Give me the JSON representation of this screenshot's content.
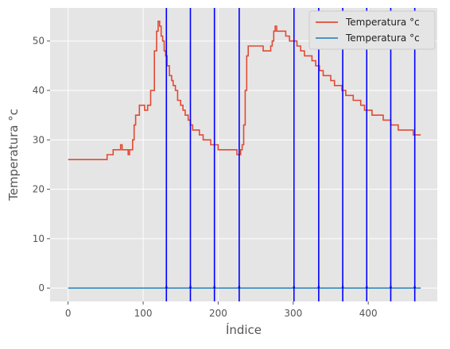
{
  "chart_data": {
    "type": "line",
    "title": "",
    "xlabel": "Índice",
    "ylabel": "Temperatura °c",
    "xlim": [
      -24,
      492
    ],
    "ylim": [
      -2.7,
      56.7
    ],
    "xticks": [
      0,
      100,
      200,
      300,
      400
    ],
    "yticks": [
      0,
      10,
      20,
      30,
      40,
      50
    ],
    "grid": true,
    "legend": "top-right",
    "series": [
      {
        "name": "Temperatura °c",
        "color": "#E24A33",
        "x": [
          0,
          50,
          52,
          60,
          68,
          70,
          72,
          75,
          78,
          80,
          82,
          84,
          86,
          88,
          90,
          95,
          100,
          102,
          106,
          110,
          115,
          118,
          120,
          122,
          124,
          126,
          128,
          130,
          132,
          135,
          138,
          140,
          143,
          146,
          150,
          153,
          156,
          160,
          163,
          166,
          170,
          175,
          180,
          185,
          190,
          195,
          200,
          210,
          220,
          225,
          228,
          230,
          232,
          234,
          236,
          238,
          240,
          245,
          250,
          255,
          260,
          265,
          270,
          272,
          274,
          276,
          278,
          280,
          285,
          290,
          295,
          300,
          305,
          310,
          315,
          320,
          325,
          330,
          335,
          340,
          345,
          350,
          355,
          360,
          365,
          370,
          375,
          380,
          385,
          390,
          395,
          400,
          405,
          410,
          420,
          430,
          440,
          450,
          460,
          470
        ],
        "y": [
          26,
          26,
          27,
          28,
          28,
          29,
          28,
          28,
          28,
          27,
          28,
          28,
          30,
          33,
          35,
          37,
          37,
          36,
          37,
          40,
          48,
          52,
          54,
          53,
          51,
          50,
          48,
          47,
          45,
          43,
          42,
          41,
          40,
          38,
          37,
          36,
          35,
          34,
          33,
          32,
          32,
          31,
          30,
          30,
          29,
          29,
          28,
          28,
          28,
          27,
          27,
          28,
          29,
          33,
          40,
          47,
          49,
          49,
          49,
          49,
          48,
          48,
          49,
          50,
          52,
          53,
          52,
          52,
          52,
          51,
          50,
          50,
          49,
          48,
          47,
          47,
          46,
          45,
          44,
          43,
          43,
          42,
          41,
          41,
          40,
          39,
          39,
          38,
          38,
          37,
          36,
          36,
          35,
          35,
          34,
          33,
          32,
          32,
          31,
          31
        ]
      },
      {
        "name": "Temperatura °c",
        "color": "#348ABD",
        "x": [
          0,
          470
        ],
        "y": [
          0,
          0
        ]
      }
    ],
    "vlines": {
      "color": "#0000FF",
      "x": [
        131,
        163,
        195,
        228,
        301,
        334,
        366,
        398,
        430,
        462
      ]
    }
  }
}
